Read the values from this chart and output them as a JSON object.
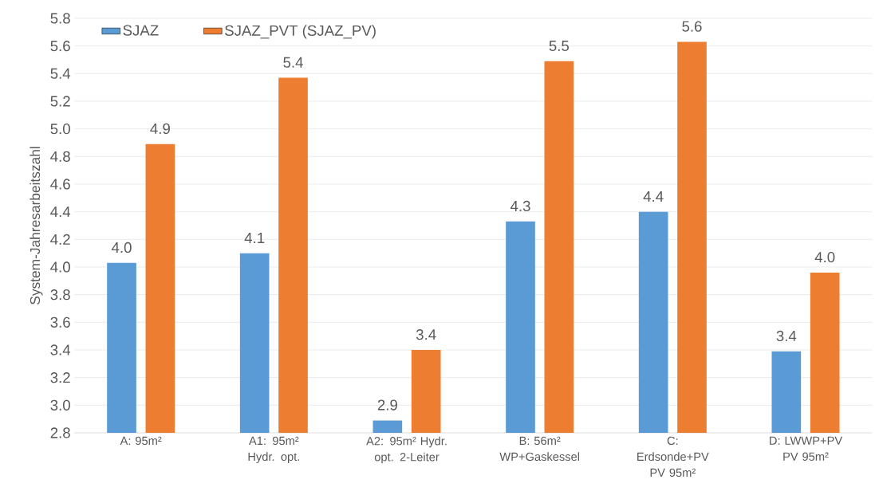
{
  "chart_data": {
    "type": "bar",
    "ylabel": "System-Jahresarbeitszahl",
    "categories": [
      "A: 95m²",
      "A1: 95m² Hydr. opt.",
      "A2: 95m² Hydr. opt. 2-Leiter",
      "B: 56m² WP+Gaskessel",
      "C: Erdsonde+PV PV 95m²",
      "D: LWWP+PV PV 95m²"
    ],
    "series": [
      {
        "name": "SJAZ",
        "color": "#5b9bd5",
        "values": [
          4.03,
          4.1,
          2.89,
          4.33,
          4.4,
          3.39
        ],
        "value_labels": [
          "4.0",
          "4.1",
          "2.9",
          "4.3",
          "4.4",
          "3.4"
        ]
      },
      {
        "name": "SJAZ_PVT (SJAZ_PV)",
        "color": "#ed7d31",
        "values": [
          4.89,
          5.37,
          3.4,
          5.49,
          5.63,
          3.96
        ],
        "value_labels": [
          "4.9",
          "5.4",
          "3.4",
          "5.5",
          "5.6",
          "4.0"
        ]
      }
    ],
    "ylim": [
      2.8,
      5.8
    ],
    "yticks": [
      {
        "value": 2.8,
        "label": "2.8"
      },
      {
        "value": 3.0,
        "label": "3.0"
      },
      {
        "value": 3.2,
        "label": "3.2"
      },
      {
        "value": 3.4,
        "label": "3.4"
      },
      {
        "value": 3.6,
        "label": "3.6"
      },
      {
        "value": 3.8,
        "label": "3.8"
      },
      {
        "value": 4.0,
        "label": "4.0"
      },
      {
        "value": 4.2,
        "label": "4.2"
      },
      {
        "value": 4.4,
        "label": "4.4"
      },
      {
        "value": 4.6,
        "label": "4.6"
      },
      {
        "value": 4.8,
        "label": "4.8"
      },
      {
        "value": 5.0,
        "label": "5.0"
      },
      {
        "value": 5.2,
        "label": "5.2"
      },
      {
        "value": 5.4,
        "label": "5.4"
      },
      {
        "value": 5.6,
        "label": "5.6"
      },
      {
        "value": 5.8,
        "label": "5.8"
      }
    ],
    "grid": "y",
    "legend": "top left"
  }
}
